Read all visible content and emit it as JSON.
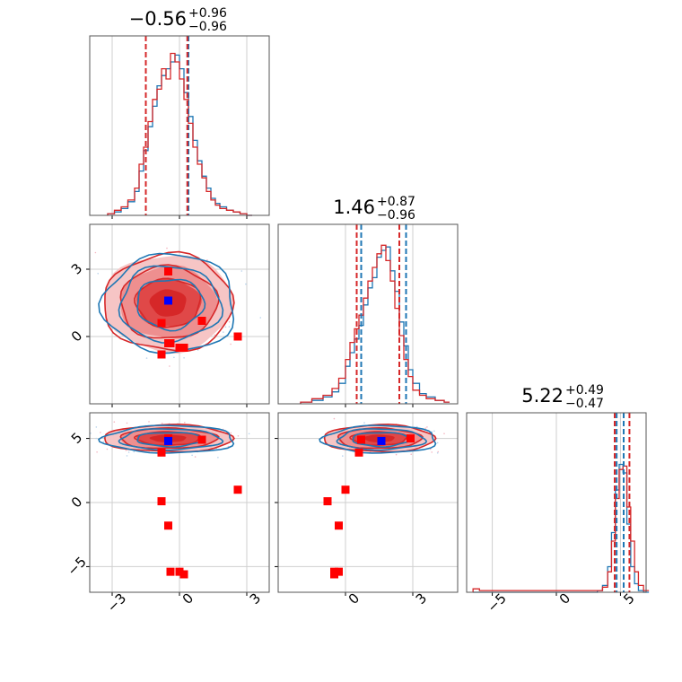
{
  "chart_data": {
    "type": "scatter",
    "kind": "corner-plot",
    "parameters": 3,
    "grid": true,
    "colors": {
      "series_a": "#1f77b4",
      "series_b": "#d62728",
      "marker_blue": "#0000ff",
      "marker_red": "#ff0000"
    },
    "titles": [
      {
        "value": "−0.56",
        "plus": "+0.96",
        "minus": "−0.96"
      },
      {
        "value": "1.46",
        "plus": "+0.87",
        "minus": "−0.96"
      },
      {
        "value": "5.22",
        "plus": "+0.49",
        "minus": "−0.47"
      }
    ],
    "axes": {
      "p1": {
        "range": [
          -4,
          4
        ],
        "ticks": [
          -3,
          0,
          3
        ],
        "tick_labels": [
          "−3",
          "0",
          "3"
        ]
      },
      "p2": {
        "range": [
          -3,
          5
        ],
        "ticks": [
          0,
          3
        ],
        "tick_labels": [
          "0",
          "3"
        ]
      },
      "p3": {
        "range": [
          -7,
          7
        ],
        "ticks": [
          -5,
          0,
          5
        ],
        "tick_labels": [
          "−5",
          "0",
          "5"
        ]
      }
    },
    "quantiles": {
      "p1": {
        "series_a": [
          -1.5,
          0.4
        ],
        "series_b": [
          -1.5,
          0.35
        ]
      },
      "p2": {
        "series_a": [
          0.7,
          2.7
        ],
        "series_b": [
          0.5,
          2.4
        ]
      },
      "p3": {
        "series_a": [
          4.7,
          5.25
        ],
        "series_b": [
          4.55,
          5.7
        ]
      }
    },
    "histograms": {
      "p1": {
        "series_a": {
          "x": [
            -3.2,
            -2.9,
            -2.6,
            -2.3,
            -2.0,
            -1.8,
            -1.6,
            -1.4,
            -1.2,
            -1.0,
            -0.8,
            -0.6,
            -0.4,
            -0.2,
            0.0,
            0.2,
            0.4,
            0.6,
            0.8,
            1.0,
            1.2,
            1.4,
            1.6,
            1.8,
            2.1,
            2.4,
            2.7,
            3.0
          ],
          "y": [
            0.01,
            0.02,
            0.04,
            0.08,
            0.14,
            0.26,
            0.38,
            0.52,
            0.64,
            0.76,
            0.82,
            0.86,
            0.9,
            0.94,
            0.86,
            0.72,
            0.58,
            0.44,
            0.32,
            0.23,
            0.16,
            0.1,
            0.07,
            0.05,
            0.03,
            0.02,
            0.01,
            0.0
          ]
        },
        "series_b": {
          "x": [
            -3.2,
            -2.9,
            -2.6,
            -2.3,
            -2.0,
            -1.8,
            -1.6,
            -1.4,
            -1.2,
            -1.0,
            -0.8,
            -0.6,
            -0.4,
            -0.2,
            0.0,
            0.2,
            0.4,
            0.6,
            0.8,
            1.0,
            1.2,
            1.4,
            1.6,
            1.8,
            2.1,
            2.4,
            2.7,
            3.0
          ],
          "y": [
            0.01,
            0.03,
            0.05,
            0.09,
            0.16,
            0.3,
            0.4,
            0.55,
            0.68,
            0.74,
            0.86,
            0.8,
            0.95,
            0.9,
            0.8,
            0.68,
            0.54,
            0.4,
            0.3,
            0.22,
            0.14,
            0.09,
            0.06,
            0.04,
            0.03,
            0.02,
            0.01,
            0.0
          ]
        }
      },
      "p2": {
        "series_a": {
          "x": [
            -2.0,
            -1.5,
            -1.0,
            -0.6,
            -0.3,
            0.0,
            0.2,
            0.4,
            0.6,
            0.8,
            1.0,
            1.2,
            1.4,
            1.6,
            1.8,
            2.0,
            2.2,
            2.4,
            2.6,
            2.8,
            3.0,
            3.3,
            3.6,
            4.0,
            4.4
          ],
          "y": [
            0.01,
            0.02,
            0.04,
            0.07,
            0.12,
            0.22,
            0.3,
            0.38,
            0.46,
            0.58,
            0.68,
            0.74,
            0.86,
            0.9,
            0.92,
            0.78,
            0.66,
            0.48,
            0.34,
            0.2,
            0.12,
            0.06,
            0.04,
            0.02,
            0.01
          ]
        },
        "series_b": {
          "x": [
            -2.0,
            -1.5,
            -1.0,
            -0.6,
            -0.3,
            0.0,
            0.2,
            0.4,
            0.6,
            0.8,
            1.0,
            1.2,
            1.4,
            1.6,
            1.8,
            2.0,
            2.2,
            2.4,
            2.6,
            2.8,
            3.0,
            3.3,
            3.6,
            4.0,
            4.4
          ],
          "y": [
            0.01,
            0.03,
            0.05,
            0.09,
            0.15,
            0.26,
            0.36,
            0.44,
            0.52,
            0.62,
            0.72,
            0.8,
            0.88,
            0.93,
            0.84,
            0.72,
            0.56,
            0.4,
            0.26,
            0.16,
            0.08,
            0.05,
            0.03,
            0.02,
            0.01
          ]
        }
      },
      "p3": {
        "series_a": {
          "x": [
            -6.5,
            -6.0,
            3.2,
            3.6,
            4.0,
            4.3,
            4.6,
            4.9,
            5.2,
            5.5,
            5.8,
            6.1,
            6.4,
            6.8
          ],
          "y": [
            0.0,
            0.0,
            0.01,
            0.04,
            0.15,
            0.35,
            0.6,
            0.75,
            0.7,
            0.4,
            0.15,
            0.05,
            0.01,
            0.0
          ]
        },
        "series_b": {
          "x": [
            -6.5,
            -6.0,
            3.2,
            3.6,
            4.0,
            4.3,
            4.6,
            4.9,
            5.2,
            5.5,
            5.8,
            6.1,
            6.4,
            6.8
          ],
          "y": [
            0.02,
            0.01,
            0.01,
            0.03,
            0.12,
            0.3,
            0.55,
            0.72,
            0.74,
            0.5,
            0.3,
            0.12,
            0.04,
            0.01
          ]
        }
      }
    },
    "markers": {
      "blue": {
        "p1": -0.5,
        "p2": 1.6,
        "p3": 4.8
      },
      "red": [
        {
          "p1": -0.5,
          "p2": 2.9,
          "p3": 5.0
        },
        {
          "p1": 1.0,
          "p2": 0.7,
          "p3": 4.9
        },
        {
          "p1": -0.8,
          "p2": 0.6,
          "p3": 3.9
        },
        {
          "p1": 2.6,
          "p2": 0.0,
          "p3": 1.0
        },
        {
          "p1": -0.4,
          "p2": -0.3,
          "p3": -5.4
        },
        {
          "p1": 0.0,
          "p2": -0.5,
          "p3": -5.4
        },
        {
          "p1": 0.2,
          "p2": -0.5,
          "p3": -5.6
        },
        {
          "p1": -0.8,
          "p2": -0.8,
          "p3": 0.1
        },
        {
          "p1": -0.5,
          "p2": -0.3,
          "p3": -1.8
        }
      ]
    }
  }
}
